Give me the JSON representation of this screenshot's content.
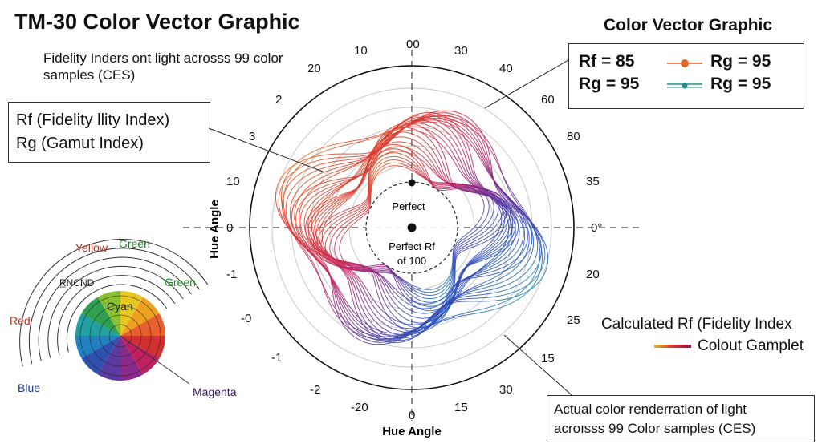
{
  "header": {
    "title": "TM-30 Color Vector Graphic",
    "subtitle": "Fidelity Inders ont light acrosss 99 color samples (CES)",
    "right_title": "Color Vector Graphic"
  },
  "definitions": {
    "rf": "Rf (Fidelity llity Index)",
    "rg": "Rg (Gamut Index)"
  },
  "legend": {
    "row1_left": "Rf = 85",
    "row1_right": "Rg = 95",
    "row2_left": "Rg = 95",
    "row2_right": "Rg = 95",
    "row1_color": "#e0692a",
    "row2_color": "#1e8a8a"
  },
  "polar": {
    "tick_labels": {
      "t00": "00",
      "t10": "10",
      "t20": "20",
      "t2": "2",
      "t3": "3",
      "t10b": "10",
      "t0": "0",
      "tm1": "-1",
      "tm0": "-0",
      "tm1b": "-1",
      "tm2": "-2",
      "tm20": "-20",
      "t0b": "0",
      "t15": "15",
      "t30": "30",
      "t15b": "15",
      "t25": "25",
      "t20r": "20",
      "t0deg": "0°",
      "t35": "35",
      "t80": "80",
      "t60": "60",
      "t40": "40",
      "t30top": "30"
    },
    "axis_left": "Hue Angle",
    "axis_bottom": "Hue Angle",
    "center_top": "Perfect",
    "center_mid": "Perfect Rf",
    "center_bottom": "of 100"
  },
  "calc": {
    "label": "Calculated Rf (Fidelity Index",
    "gamut": "Colout Gamplet"
  },
  "annotation": {
    "line1": "Actual color renderration of light",
    "line2": "acroısss 99 Color samples (CES)"
  },
  "wheel": {
    "yellow": "Yellow",
    "green_top": "Green",
    "green": "Green",
    "red": "Red",
    "cyan": "Cyan",
    "blue": "Blue",
    "magenta": "Magenta",
    "noise": "R̲NCND",
    "colors": {
      "yellow": "#d0a020",
      "green": "#2a8a2a",
      "red": "#b83020",
      "blue": "#1a3a8a",
      "magenta": "#3a1a6a"
    }
  }
}
